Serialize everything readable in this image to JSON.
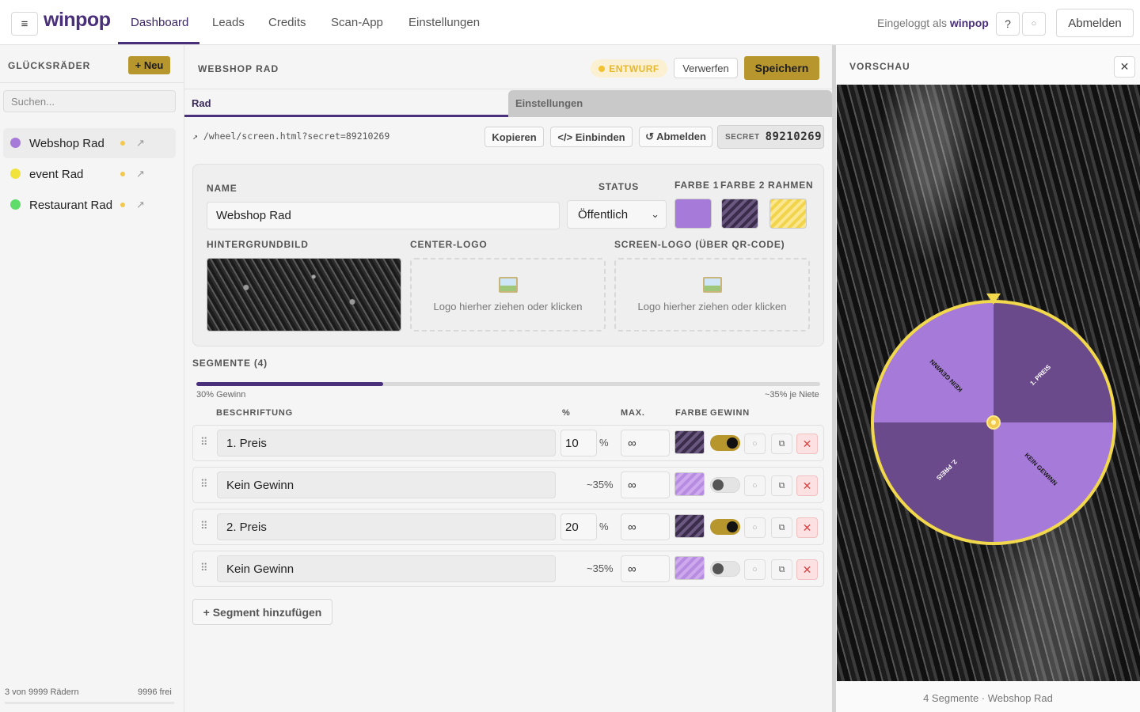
{
  "topbar": {
    "logo": "winpop",
    "nav": [
      "Dashboard",
      "Leads",
      "Credits",
      "Scan-App",
      "Einstellungen"
    ],
    "logged_in_prefix": "Eingeloggt als",
    "username": "winpop",
    "help_label": "?",
    "logout_label": "Abmelden"
  },
  "sidebar": {
    "title": "GLÜCKSRÄDER",
    "new_label": "+ Neu",
    "search_placeholder": "Suchen...",
    "wheels": [
      {
        "name": "Webshop Rad",
        "color": "#a67ad8"
      },
      {
        "name": "event Rad",
        "color": "#f2e33c"
      },
      {
        "name": "Restaurant Rad",
        "color": "#5fdc6a"
      }
    ],
    "footer_count": "3 von 9999 Rädern",
    "footer_free": "9996 frei"
  },
  "editor": {
    "title": "WEBSHOP RAD",
    "draft_badge": "ENTWURF",
    "discard_label": "Verwerfen",
    "save_label": "Speichern",
    "tabs": [
      "Rad",
      "Einstellungen"
    ],
    "url": "↗ /wheel/screen.html?secret=89210269",
    "copy_label": "Kopieren",
    "embed_label": "</> Einbinden",
    "logout_label": "↺ Abmelden",
    "secret_label": "SECRET",
    "secret_value": "89210269",
    "name_label": "NAME",
    "name_value": "Webshop Rad",
    "status_label": "STATUS",
    "status_value": "Öffentlich",
    "color1_label": "FARBE 1",
    "color2_label": "FARBE 2",
    "frame_label": "RAHMEN",
    "color1": "#a67ad8",
    "bg_label": "HINTERGRUNDBILD",
    "center_logo_label": "CENTER-LOGO",
    "screen_logo_label": "SCREEN-LOGO (ÜBER QR-CODE)",
    "drop_text": "Logo hierher ziehen oder klicken"
  },
  "segments": {
    "title": "SEGMENTE (4)",
    "win_label": "30% Gewinn",
    "win_fraction": 0.3,
    "niete_label": "~35% je Niete",
    "headers": {
      "label": "BESCHRIFTUNG",
      "pct": "%",
      "max": "MAX.",
      "color": "FARBE",
      "win": "GEWINN"
    },
    "rows": [
      {
        "label": "1. Preis",
        "pct": "10",
        "pct_auto": "",
        "max": "∞",
        "style": "dark",
        "win": true
      },
      {
        "label": "Kein Gewinn",
        "pct": "",
        "pct_auto": "~35%",
        "max": "∞",
        "style": "light",
        "win": false
      },
      {
        "label": "2. Preis",
        "pct": "20",
        "pct_auto": "",
        "max": "∞",
        "style": "dark",
        "win": true
      },
      {
        "label": "Kein Gewinn",
        "pct": "",
        "pct_auto": "~35%",
        "max": "∞",
        "style": "light",
        "win": false
      }
    ],
    "add_label": "+ Segment hinzufügen"
  },
  "preview": {
    "title": "VORSCHAU",
    "caption": "4 Segmente · Webshop Rad",
    "wheel_labels": [
      "1. PREIS",
      "KEIN GEWINN",
      "2. PREIS",
      "KEIN GEWINN"
    ],
    "colors": {
      "dark": "#6a4a8a",
      "light": "#a67ad8",
      "frame": "#f2d84c"
    }
  }
}
